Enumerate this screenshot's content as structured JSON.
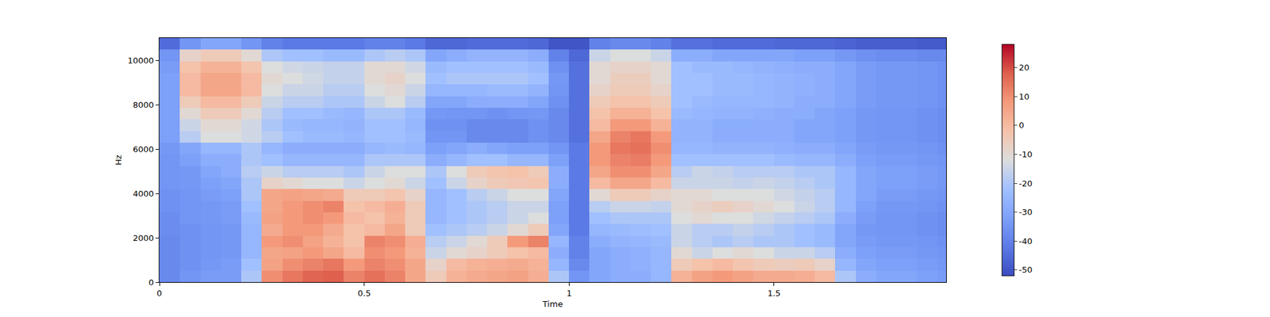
{
  "chart_data": {
    "type": "heatmap",
    "xlabel": "Time",
    "ylabel": "Hz",
    "xlim": [
      0,
      1.92
    ],
    "xticks": [
      0,
      0.5,
      1,
      1.5
    ],
    "ylim": [
      0,
      11025
    ],
    "yticks": [
      0,
      2000,
      4000,
      6000,
      8000,
      10000
    ],
    "grid": false,
    "x": [
      0.025,
      0.075,
      0.125,
      0.175,
      0.225,
      0.275,
      0.325,
      0.375,
      0.425,
      0.475,
      0.525,
      0.575,
      0.625,
      0.675,
      0.725,
      0.775,
      0.825,
      0.875,
      0.925,
      0.975,
      1.025,
      1.075,
      1.125,
      1.175,
      1.225,
      1.275,
      1.325,
      1.375,
      1.425,
      1.475,
      1.525,
      1.575,
      1.625,
      1.675,
      1.725,
      1.775,
      1.825,
      1.875,
      1.925
    ],
    "y": [
      262.5,
      787.5,
      1312.5,
      1837.5,
      2362.5,
      2887.5,
      3412.5,
      3937.5,
      4462.5,
      4987.5,
      5512.5,
      6037.5,
      6562.5,
      7087.5,
      7612.5,
      8137.5,
      8662.5,
      9187.5,
      9712.5,
      10237.5,
      10762.5
    ],
    "z": [
      [
        -38,
        -35,
        -33,
        -33,
        -20,
        10,
        14,
        17,
        18,
        12,
        15,
        12,
        5,
        -5,
        2,
        4,
        5,
        6,
        3,
        -20,
        -35,
        -30,
        -28,
        -28,
        -25,
        2,
        6,
        8,
        6,
        4,
        4,
        3,
        0,
        -20,
        -28,
        -30,
        -30,
        -32,
        -33
      ],
      [
        -38,
        -36,
        -34,
        -33,
        -22,
        6,
        10,
        12,
        14,
        8,
        12,
        10,
        5,
        -8,
        0,
        2,
        3,
        4,
        2,
        -25,
        -38,
        -30,
        -28,
        -27,
        -25,
        -5,
        -2,
        0,
        -3,
        -5,
        -6,
        -5,
        -8,
        -25,
        -30,
        -32,
        -32,
        -33,
        -34
      ],
      [
        -38,
        -36,
        -35,
        -34,
        -25,
        5,
        6,
        8,
        5,
        0,
        10,
        8,
        2,
        -15,
        -10,
        -8,
        -5,
        -2,
        0,
        -28,
        -40,
        -30,
        -28,
        -27,
        -25,
        -10,
        -15,
        -12,
        -10,
        -12,
        -15,
        -15,
        -18,
        -28,
        -32,
        -33,
        -33,
        -34,
        -35
      ],
      [
        -38,
        -36,
        -35,
        -34,
        -25,
        8,
        10,
        6,
        2,
        -2,
        12,
        10,
        3,
        -18,
        -15,
        -10,
        -5,
        8,
        12,
        -25,
        -40,
        -28,
        -26,
        -25,
        -24,
        -15,
        -18,
        -20,
        -18,
        -20,
        -20,
        -22,
        -24,
        -30,
        -33,
        -34,
        -34,
        -35,
        -36
      ],
      [
        -37,
        -36,
        -35,
        -34,
        -25,
        4,
        8,
        8,
        4,
        -2,
        0,
        5,
        -5,
        -22,
        -20,
        -18,
        -15,
        -10,
        -5,
        -30,
        -42,
        -25,
        -24,
        -23,
        -22,
        -15,
        -18,
        -18,
        -16,
        -18,
        -20,
        -22,
        -24,
        -30,
        -34,
        -35,
        -35,
        -36,
        -37
      ],
      [
        -37,
        -35,
        -34,
        -33,
        -24,
        6,
        8,
        10,
        8,
        0,
        -2,
        2,
        -5,
        -25,
        -22,
        -20,
        -18,
        -15,
        -12,
        -32,
        -42,
        -22,
        -20,
        -20,
        -20,
        -12,
        -10,
        -12,
        -12,
        -14,
        -16,
        -18,
        -20,
        -28,
        -33,
        -35,
        -35,
        -36,
        -37
      ],
      [
        -36,
        -35,
        -34,
        -33,
        -22,
        5,
        8,
        10,
        12,
        -2,
        0,
        3,
        -5,
        -25,
        -22,
        -20,
        -18,
        -15,
        -15,
        -32,
        -42,
        -18,
        -15,
        -15,
        -16,
        -10,
        -8,
        -6,
        -8,
        -10,
        -12,
        -15,
        -18,
        -25,
        -32,
        -34,
        -34,
        -35,
        -36
      ],
      [
        -36,
        -35,
        -33,
        -32,
        -20,
        5,
        6,
        5,
        4,
        -5,
        -5,
        -3,
        -8,
        -25,
        -22,
        -18,
        -15,
        -12,
        -12,
        -30,
        -42,
        -10,
        -5,
        -5,
        -8,
        -10,
        -10,
        -12,
        -12,
        -12,
        -14,
        -16,
        -18,
        -25,
        -30,
        -33,
        -33,
        -34,
        -35
      ],
      [
        -35,
        -34,
        -32,
        -30,
        -20,
        -8,
        -10,
        -12,
        -12,
        -15,
        -12,
        -10,
        -15,
        -22,
        -15,
        -8,
        -5,
        -4,
        -3,
        -28,
        -42,
        0,
        5,
        5,
        0,
        -15,
        -15,
        -15,
        -16,
        -15,
        -16,
        -18,
        -20,
        -25,
        -30,
        -32,
        -32,
        -33,
        -34
      ],
      [
        -35,
        -34,
        -30,
        -28,
        -18,
        -15,
        -18,
        -18,
        -18,
        -20,
        -15,
        -12,
        -12,
        -20,
        -12,
        -5,
        -3,
        -2,
        -5,
        -28,
        -42,
        5,
        10,
        10,
        5,
        -18,
        -15,
        -16,
        -18,
        -18,
        -18,
        -20,
        -20,
        -25,
        -30,
        -32,
        -32,
        -33,
        -34
      ],
      [
        -35,
        -32,
        -28,
        -28,
        -20,
        -22,
        -25,
        -25,
        -25,
        -25,
        -20,
        -20,
        -20,
        -28,
        -25,
        -22,
        -22,
        -25,
        -25,
        -32,
        -42,
        8,
        12,
        13,
        8,
        -22,
        -22,
        -22,
        -22,
        -22,
        -24,
        -25,
        -25,
        -28,
        -32,
        -33,
        -33,
        -34,
        -35
      ],
      [
        -34,
        -30,
        -25,
        -25,
        -20,
        -25,
        -28,
        -28,
        -28,
        -28,
        -25,
        -24,
        -25,
        -32,
        -30,
        -28,
        -30,
        -32,
        -32,
        -35,
        -42,
        8,
        14,
        15,
        10,
        -25,
        -25,
        -26,
        -26,
        -26,
        -27,
        -28,
        -28,
        -30,
        -33,
        -34,
        -34,
        -35,
        -36
      ],
      [
        -32,
        -18,
        -12,
        -12,
        -14,
        -18,
        -22,
        -24,
        -24,
        -25,
        -22,
        -22,
        -24,
        -35,
        -35,
        -38,
        -38,
        -38,
        -36,
        -38,
        -44,
        5,
        12,
        14,
        8,
        -26,
        -26,
        -28,
        -28,
        -28,
        -28,
        -30,
        -30,
        -32,
        -34,
        -35,
        -35,
        -36,
        -37
      ],
      [
        -32,
        -15,
        -10,
        -10,
        -14,
        -20,
        -24,
        -25,
        -25,
        -26,
        -22,
        -22,
        -25,
        -36,
        -36,
        -38,
        -38,
        -38,
        -36,
        -38,
        -44,
        0,
        8,
        8,
        2,
        -26,
        -26,
        -28,
        -28,
        -28,
        -28,
        -30,
        -30,
        -32,
        -34,
        -35,
        -35,
        -36,
        -37
      ],
      [
        -32,
        -10,
        -5,
        -5,
        -10,
        -18,
        -22,
        -22,
        -24,
        -25,
        -20,
        -20,
        -24,
        -34,
        -35,
        -35,
        -36,
        -35,
        -34,
        -38,
        -44,
        -2,
        2,
        2,
        -2,
        -24,
        -25,
        -26,
        -26,
        -27,
        -28,
        -28,
        -30,
        -32,
        -34,
        -35,
        -35,
        -36,
        -37
      ],
      [
        -32,
        -5,
        0,
        0,
        -5,
        -15,
        -18,
        -18,
        -20,
        -20,
        -15,
        -12,
        -18,
        -30,
        -30,
        -28,
        -28,
        -28,
        -30,
        -36,
        -44,
        -5,
        -2,
        -2,
        -5,
        -22,
        -24,
        -25,
        -25,
        -25,
        -26,
        -28,
        -28,
        -30,
        -33,
        -34,
        -34,
        -35,
        -36
      ],
      [
        -32,
        0,
        5,
        5,
        0,
        -12,
        -15,
        -15,
        -18,
        -18,
        -12,
        -10,
        -15,
        -25,
        -25,
        -25,
        -24,
        -24,
        -26,
        -35,
        -44,
        -8,
        -5,
        -5,
        -8,
        -22,
        -22,
        -24,
        -24,
        -25,
        -26,
        -27,
        -28,
        -30,
        -33,
        -34,
        -34,
        -35,
        -36
      ],
      [
        -32,
        0,
        5,
        5,
        0,
        -10,
        -12,
        -14,
        -16,
        -16,
        -10,
        -8,
        -12,
        -22,
        -20,
        -20,
        -20,
        -20,
        -22,
        -34,
        -44,
        -10,
        -6,
        -6,
        -10,
        -22,
        -22,
        -24,
        -24,
        -25,
        -26,
        -27,
        -28,
        -30,
        -33,
        -34,
        -34,
        -35,
        -36
      ],
      [
        -33,
        -2,
        2,
        2,
        -3,
        -12,
        -14,
        -15,
        -16,
        -16,
        -10,
        -10,
        -14,
        -24,
        -22,
        -22,
        -22,
        -22,
        -24,
        -36,
        -44,
        -10,
        -8,
        -8,
        -10,
        -22,
        -24,
        -24,
        -25,
        -26,
        -27,
        -28,
        -28,
        -30,
        -33,
        -34,
        -34,
        -35,
        -36
      ],
      [
        -35,
        -8,
        -5,
        -5,
        -10,
        -20,
        -22,
        -22,
        -24,
        -24,
        -20,
        -18,
        -20,
        -30,
        -28,
        -26,
        -26,
        -26,
        -28,
        -40,
        -46,
        -15,
        -12,
        -12,
        -15,
        -28,
        -28,
        -30,
        -30,
        -30,
        -30,
        -32,
        -32,
        -34,
        -36,
        -37,
        -37,
        -38,
        -38
      ],
      [
        -45,
        -35,
        -30,
        -30,
        -35,
        -40,
        -42,
        -42,
        -42,
        -42,
        -40,
        -40,
        -42,
        -46,
        -46,
        -45,
        -45,
        -45,
        -46,
        -50,
        -50,
        -40,
        -38,
        -38,
        -40,
        -44,
        -44,
        -45,
        -45,
        -45,
        -46,
        -46,
        -46,
        -47,
        -48,
        -48,
        -48,
        -49,
        -49
      ]
    ],
    "colorbar": {
      "range": [
        -52,
        28
      ],
      "ticks": [
        -50,
        -40,
        -30,
        -20,
        -10,
        0,
        10,
        20
      ]
    }
  }
}
